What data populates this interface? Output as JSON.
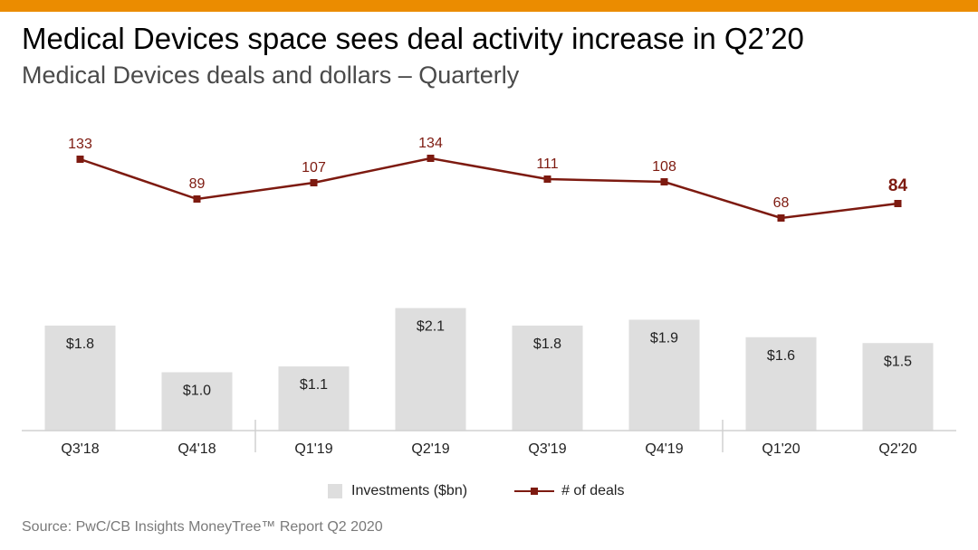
{
  "header": {
    "title": "Medical Devices space sees deal activity increase in Q2’20",
    "subtitle": "Medical Devices deals and dollars – Quarterly"
  },
  "footer": {
    "source": "Source: PwC/CB Insights MoneyTree™ Report Q2 2020"
  },
  "colors": {
    "accent": "#EB8C00",
    "bar": "#DEDEDE",
    "line": "#7D1A10",
    "label": "#222222"
  },
  "chart_data": {
    "type": "bar",
    "categories": [
      "Q3'18",
      "Q4'18",
      "Q1'19",
      "Q2'19",
      "Q3'19",
      "Q4'19",
      "Q1'20",
      "Q2'20"
    ],
    "series": [
      {
        "name": "Investments ($bn)",
        "type": "bar",
        "values": [
          1.8,
          1.0,
          1.1,
          2.1,
          1.8,
          1.9,
          1.6,
          1.5
        ],
        "labels": [
          "$1.8",
          "$1.0",
          "$1.1",
          "$2.1",
          "$1.8",
          "$1.9",
          "$1.6",
          "$1.5"
        ]
      },
      {
        "name": "# of deals",
        "type": "line",
        "values": [
          133,
          89,
          107,
          134,
          111,
          108,
          68,
          84
        ],
        "labels": [
          "133",
          "89",
          "107",
          "134",
          "111",
          "108",
          "68",
          "84"
        ]
      }
    ],
    "legend": "bottom-center",
    "grid": false,
    "highlight_last_point": true
  }
}
